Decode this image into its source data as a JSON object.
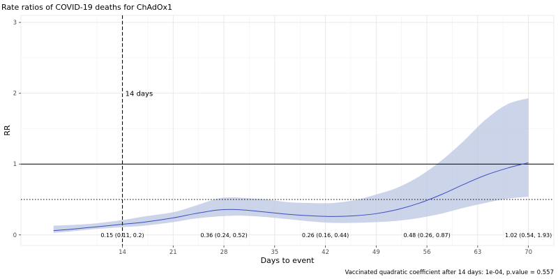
{
  "chart_data": {
    "type": "line",
    "title": "Rate ratios of COVID-19 deaths for ChAdOx1",
    "xlabel": "Days to event",
    "ylabel": "RR",
    "caption": "Vaccinated quadratic coefficient after 14 days: 1e-04, p.value = 0.557",
    "xlim": [
      0,
      73.5
    ],
    "ylim": [
      -0.15,
      3.1
    ],
    "x_ticks": [
      14,
      21,
      28,
      35,
      42,
      49,
      56,
      63,
      70
    ],
    "y_ticks": [
      0,
      1,
      2,
      3
    ],
    "grid": true,
    "series": [
      {
        "color": "#3b4cc0",
        "band_color": "#b7c2e0",
        "x": [
          4.5,
          7,
          10,
          14,
          17,
          21,
          24,
          27,
          29,
          31,
          34,
          37,
          40,
          43,
          46,
          49,
          52,
          55,
          58,
          61,
          64,
          67,
          70
        ],
        "y": [
          0.06,
          0.08,
          0.11,
          0.15,
          0.18,
          0.24,
          0.3,
          0.35,
          0.36,
          0.35,
          0.32,
          0.29,
          0.27,
          0.26,
          0.27,
          0.3,
          0.36,
          0.45,
          0.57,
          0.71,
          0.84,
          0.94,
          1.02
        ],
        "lower": [
          0.03,
          0.05,
          0.08,
          0.11,
          0.13,
          0.18,
          0.23,
          0.26,
          0.27,
          0.27,
          0.25,
          0.22,
          0.19,
          0.17,
          0.17,
          0.18,
          0.2,
          0.24,
          0.3,
          0.38,
          0.45,
          0.51,
          0.54
        ],
        "upper": [
          0.13,
          0.14,
          0.16,
          0.21,
          0.26,
          0.32,
          0.41,
          0.51,
          0.53,
          0.52,
          0.5,
          0.46,
          0.45,
          0.45,
          0.49,
          0.57,
          0.67,
          0.83,
          1.05,
          1.32,
          1.62,
          1.84,
          1.93
        ]
      }
    ],
    "reference_lines": [
      {
        "axis": "y",
        "value": 1,
        "style": "solid"
      },
      {
        "axis": "y",
        "value": 0.5,
        "style": "dotted"
      },
      {
        "axis": "x",
        "value": 14,
        "style": "dashed"
      }
    ],
    "annotations": [
      {
        "text": "14 days",
        "x": 14.4,
        "y": 2
      },
      {
        "text": "0.15 (0.11, 0.2)",
        "x": 14,
        "y": 0
      },
      {
        "text": "0.36 (0.24, 0.52)",
        "x": 28,
        "y": 0
      },
      {
        "text": "0.26 (0.16, 0.44)",
        "x": 42,
        "y": 0
      },
      {
        "text": "0.48 (0.26, 0.87)",
        "x": 56,
        "y": 0
      },
      {
        "text": "1.02 (0.54, 1.93)",
        "x": 70,
        "y": 0
      }
    ]
  }
}
